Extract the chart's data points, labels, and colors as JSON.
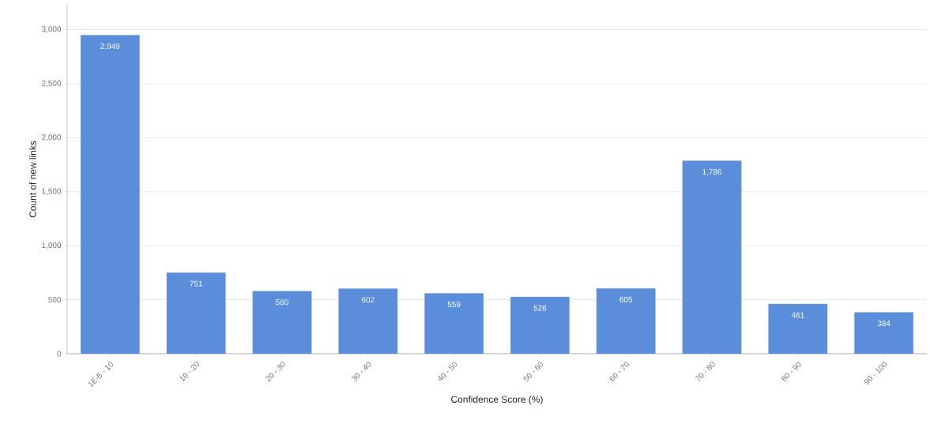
{
  "chart_data": {
    "type": "bar",
    "xlabel": "Confidence Score (%)",
    "ylabel": "Count of new links",
    "categories": [
      "1E-5 - 10",
      "10 - 20",
      "20 - 30",
      "30 - 40",
      "40 - 50",
      "50 - 60",
      "60 - 70",
      "70 - 80",
      "80 - 90",
      "90 - 100"
    ],
    "values": [
      2949,
      751,
      580,
      602,
      559,
      526,
      605,
      1786,
      461,
      384
    ],
    "value_labels": [
      "2,949",
      "751",
      "580",
      "602",
      "559",
      "526",
      "605",
      "1,786",
      "461",
      "384"
    ],
    "color": "#5a8edb",
    "ylim": [
      0,
      3230
    ],
    "yticks": [
      0,
      {
        "value": 500,
        "label": "500"
      },
      {
        "value": 1000,
        "label": "1,000"
      },
      {
        "value": 1500,
        "label": "1,500"
      },
      {
        "value": 2000,
        "label": "2,000"
      },
      {
        "value": 2500,
        "label": "2,500"
      },
      {
        "value": 3000,
        "label": "3,000"
      }
    ],
    "grid": "y"
  }
}
